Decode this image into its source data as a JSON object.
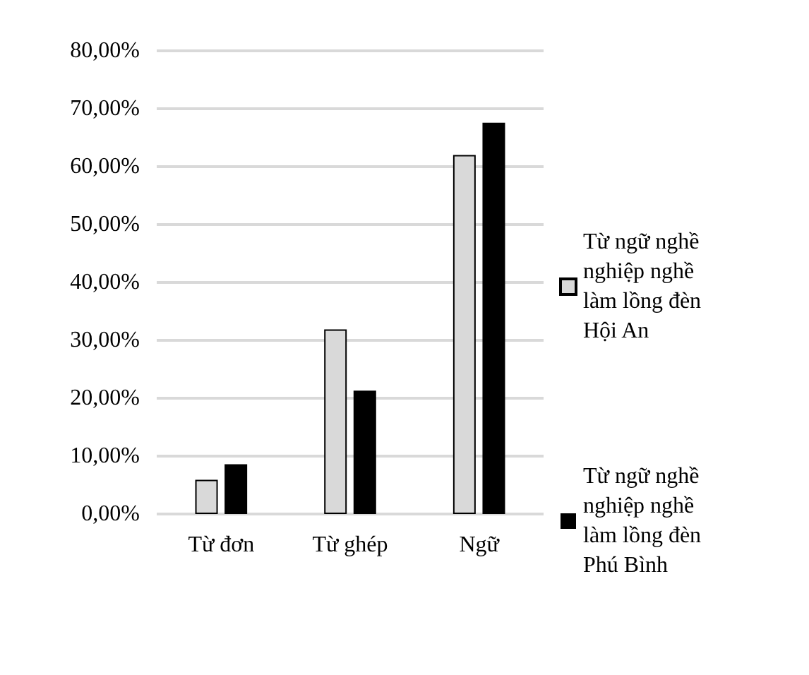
{
  "chart_data": {
    "type": "bar",
    "categories": [
      "Từ đơn",
      "Từ ghép",
      "Ngữ"
    ],
    "series": [
      {
        "name": "Từ ngữ nghề nghiệp nghề làm lồng đèn Hội An",
        "color": "#d9d9d9",
        "values": [
          5.9,
          31.9,
          62.0
        ]
      },
      {
        "name": "Từ ngữ nghề nghiệp nghề làm lồng đèn Phú Bình",
        "color": "#000000",
        "values": [
          8.6,
          21.3,
          67.6
        ]
      }
    ],
    "ylim": [
      0,
      80
    ],
    "yticks": [
      {
        "value": 0,
        "label": "0,00%"
      },
      {
        "value": 10,
        "label": "10,00%"
      },
      {
        "value": 20,
        "label": "20,00%"
      },
      {
        "value": 30,
        "label": "30,00%"
      },
      {
        "value": 40,
        "label": "40,00%"
      },
      {
        "value": 50,
        "label": "50,00%"
      },
      {
        "value": 60,
        "label": "60,00%"
      },
      {
        "value": 70,
        "label": "70,00%"
      },
      {
        "value": 80,
        "label": "80,00%"
      }
    ],
    "grid": "y",
    "legend": "right"
  }
}
